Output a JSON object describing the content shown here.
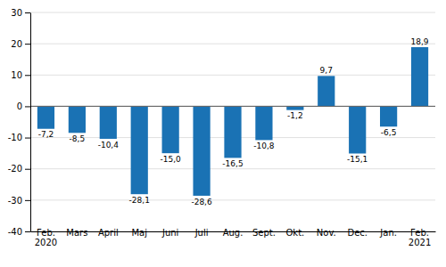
{
  "chart_data": {
    "type": "bar",
    "categories": [
      "Feb.\n2020",
      "Mars",
      "April",
      "Maj",
      "Juni",
      "Juli",
      "Aug.",
      "Sept.",
      "Okt.",
      "Nov.",
      "Dec.",
      "Jan.",
      "Feb.\n2021"
    ],
    "values": [
      -7.2,
      -8.5,
      -10.4,
      -28.1,
      -15.0,
      -28.6,
      -16.5,
      -10.8,
      -1.2,
      9.7,
      -15.1,
      -6.5,
      18.9
    ],
    "value_labels": [
      "-7,2",
      "-8,5",
      "-10,4",
      "-28,1",
      "-15,0",
      "-28,6",
      "-16,5",
      "-10,8",
      "-1,2",
      "9,7",
      "-15,1",
      "-6,5",
      "18,9"
    ],
    "data_labels": true,
    "color": "#1a72b4",
    "ylim": [
      -40,
      30
    ],
    "yticks": [
      -40,
      -30,
      -20,
      -10,
      0,
      10,
      20,
      30
    ],
    "grid": true
  }
}
